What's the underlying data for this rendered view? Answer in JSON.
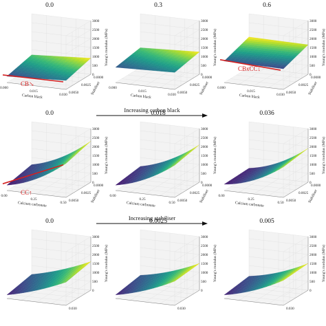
{
  "rows": [
    {
      "titles": [
        "0.0",
        "0.3",
        "0.6"
      ],
      "xlabel": "Carbon black",
      "ylabel": "Stabiliser",
      "zlabel": "Young's modulus (MPa)",
      "x_ticks": [
        "0.000",
        "0.015",
        "0.030"
      ],
      "y_ticks": [
        "0.0000",
        "0.0025",
        "0.0050"
      ],
      "z_ticks": [
        "0",
        "500",
        "1000",
        "1500",
        "2000",
        "2500",
        "3000"
      ],
      "annotations": [
        "CB↘",
        "",
        "CBxCC↓"
      ],
      "arrow_label": "Increasing carbon black"
    },
    {
      "titles": [
        "0.0",
        "0.018",
        "0.036"
      ],
      "xlabel": "Calcium carbonate",
      "ylabel": "Stabiliser",
      "zlabel": "Young's modulus (MPa)",
      "x_ticks": [
        "0.00",
        "0.25",
        "0.50"
      ],
      "y_ticks": [
        "0.0000",
        "0.0025",
        "0.0050"
      ],
      "z_ticks": [
        "0",
        "500",
        "1000",
        "1500",
        "2000",
        "2500",
        "3000"
      ],
      "annotations": [
        "CC↑",
        "",
        ""
      ],
      "arrow_label": "Increasing stabiliser"
    },
    {
      "titles": [
        "0.0",
        "0.0025",
        "0.005"
      ],
      "xlabel": "",
      "ylabel": "",
      "zlabel": "Young's modulus (MPa)",
      "x_ticks": [],
      "y_ticks": [
        "0.030"
      ],
      "z_ticks": [
        "0",
        "500",
        "1000",
        "1500",
        "2000",
        "2500",
        "3000"
      ],
      "annotations": [
        "",
        "",
        ""
      ],
      "arrow_label": ""
    }
  ],
  "colors": {
    "surface_low": "#3b2a8f",
    "surface_mid": "#1f9e89",
    "surface_high": "#fde725",
    "annotation": "#d42020",
    "arrow": "#111111"
  },
  "chart_data": [
    {
      "type": "surface",
      "title": "0.0",
      "xlabel": "Carbon black",
      "ylabel": "Stabiliser",
      "zlabel": "Young's modulus (MPa)",
      "xlim": [
        0,
        0.03
      ],
      "ylim": [
        0,
        0.005
      ],
      "zlim": [
        0,
        3000
      ],
      "z_corners": {
        "x0y0": 350,
        "x1y0": 500,
        "x0y1": 700,
        "x1y1": 900
      }
    },
    {
      "type": "surface",
      "title": "0.3",
      "xlabel": "Carbon black",
      "ylabel": "Stabiliser",
      "zlabel": "Young's modulus (MPa)",
      "xlim": [
        0,
        0.03
      ],
      "ylim": [
        0,
        0.005
      ],
      "zlim": [
        0,
        3000
      ],
      "z_corners": {
        "x0y0": 850,
        "x1y0": 950,
        "x0y1": 1100,
        "x1y1": 1250
      }
    },
    {
      "type": "surface",
      "title": "0.6",
      "xlabel": "Carbon black",
      "ylabel": "Stabiliser",
      "zlabel": "Young's modulus (MPa)",
      "xlim": [
        0,
        0.03
      ],
      "ylim": [
        0,
        0.005
      ],
      "zlim": [
        0,
        3000
      ],
      "z_corners": {
        "x0y0": 1200,
        "x1y0": 1150,
        "x0y1": 1700,
        "x1y1": 1650
      }
    },
    {
      "type": "surface",
      "title": "0.0",
      "xlabel": "Calcium carbonate",
      "ylabel": "Stabiliser",
      "zlabel": "Young's modulus (MPa)",
      "xlim": [
        0,
        0.6
      ],
      "ylim": [
        0,
        0.005
      ],
      "zlim": [
        0,
        3000
      ],
      "z_corners": {
        "x0y0": 300,
        "x1y0": 1900,
        "x0y1": 600,
        "x1y1": 2300
      },
      "curvature": 500
    },
    {
      "type": "surface",
      "title": "0.018",
      "xlabel": "Calcium carbonate",
      "ylabel": "Stabiliser",
      "zlabel": "Young's modulus (MPa)",
      "xlim": [
        0,
        0.6
      ],
      "ylim": [
        0,
        0.005
      ],
      "zlim": [
        0,
        3000
      ],
      "z_corners": {
        "x0y0": 300,
        "x1y0": 1800,
        "x0y1": 500,
        "x1y1": 2100
      },
      "curvature": 450
    },
    {
      "type": "surface",
      "title": "0.036",
      "xlabel": "Calcium carbonate",
      "ylabel": "Stabiliser",
      "zlabel": "Young's modulus (MPa)",
      "xlim": [
        0,
        0.6
      ],
      "ylim": [
        0,
        0.005
      ],
      "zlim": [
        0,
        3000
      ],
      "z_corners": {
        "x0y0": 350,
        "x1y0": 1700,
        "x0y1": 400,
        "x1y1": 1900
      },
      "curvature": 500
    },
    {
      "type": "surface",
      "title": "0.0",
      "zlabel": "Young's modulus (MPa)",
      "xlim": [
        0,
        0.6
      ],
      "ylim": [
        0,
        0.03
      ],
      "zlim": [
        0,
        3000
      ],
      "z_corners": {
        "x0y0": 200,
        "x1y0": 1300,
        "x0y1": 500,
        "x1y1": 1600
      },
      "curvature": 200
    },
    {
      "type": "surface",
      "title": "0.0025",
      "zlabel": "Young's modulus (MPa)",
      "xlim": [
        0,
        0.6
      ],
      "ylim": [
        0,
        0.03
      ],
      "zlim": [
        0,
        3000
      ],
      "z_corners": {
        "x0y0": 200,
        "x1y0": 1350,
        "x0y1": 450,
        "x1y1": 1500
      },
      "curvature": 250
    },
    {
      "type": "surface",
      "title": "0.005",
      "zlabel": "Young's modulus (MPa)",
      "xlim": [
        0,
        0.6
      ],
      "ylim": [
        0,
        0.03
      ],
      "zlim": [
        0,
        3000
      ],
      "z_corners": {
        "x0y0": 200,
        "x1y0": 1400,
        "x0y1": 400,
        "x1y1": 1500
      },
      "curvature": 300
    }
  ]
}
